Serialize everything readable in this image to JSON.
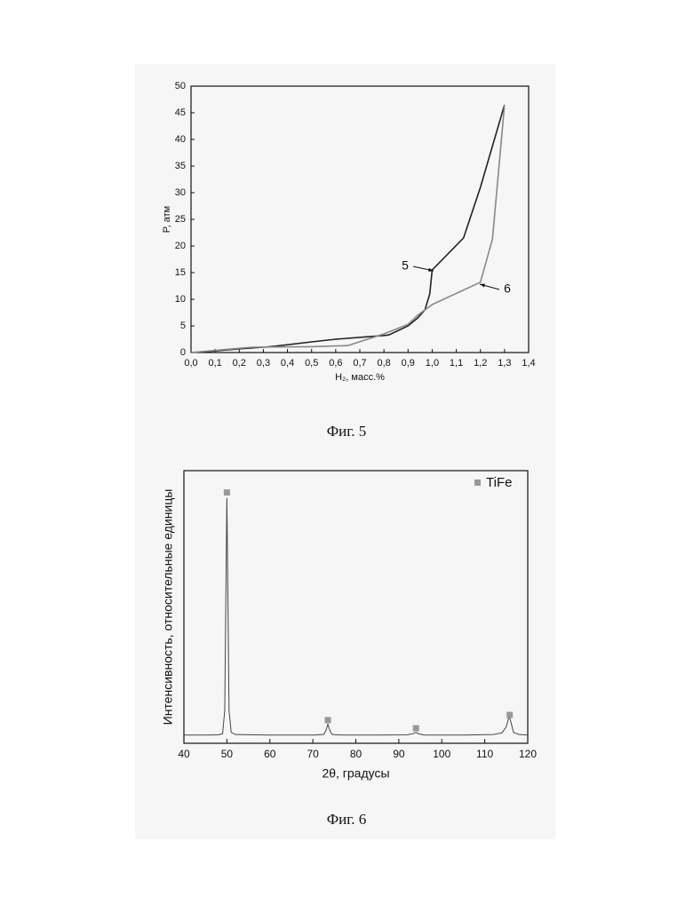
{
  "chart_data": [
    {
      "type": "line",
      "caption": "Фиг. 5",
      "xlabel": "H₂, масс.%",
      "ylabel": "P, атм",
      "xlim": [
        0,
        1.4
      ],
      "ylim": [
        0,
        50
      ],
      "xticks": [
        {
          "value": 0,
          "label": "0,0"
        },
        {
          "value": 0.1,
          "label": "0,1"
        },
        {
          "value": 0.2,
          "label": "0,2"
        },
        {
          "value": 0.3,
          "label": "0,3"
        },
        {
          "value": 0.4,
          "label": "0,4"
        },
        {
          "value": 0.5,
          "label": "0,5"
        },
        {
          "value": 0.6,
          "label": "0,6"
        },
        {
          "value": 0.7,
          "label": "0,7"
        },
        {
          "value": 0.8,
          "label": "0,8"
        },
        {
          "value": 0.9,
          "label": "0,9"
        },
        {
          "value": 1.0,
          "label": "1,0"
        },
        {
          "value": 1.1,
          "label": "1,1"
        },
        {
          "value": 1.2,
          "label": "1,2"
        },
        {
          "value": 1.3,
          "label": "1,3"
        },
        {
          "value": 1.4,
          "label": "1,4"
        }
      ],
      "yticks": [
        0,
        5,
        10,
        15,
        20,
        25,
        30,
        35,
        40,
        45,
        50
      ],
      "series": [
        {
          "name": "5",
          "color": "#222222",
          "x": [
            0.0,
            0.1,
            0.2,
            0.3,
            0.35,
            0.5,
            0.6,
            0.8,
            0.82,
            0.9,
            0.94,
            0.97,
            0.99,
            1.0,
            1.13,
            1.2,
            1.3
          ],
          "values": [
            0,
            0.3,
            0.7,
            1.0,
            1.2,
            2.0,
            2.5,
            3.2,
            3.3,
            5,
            6.5,
            8,
            11,
            15.5,
            21.5,
            31,
            46.5
          ]
        },
        {
          "name": "6",
          "color": "#888888",
          "x": [
            0.0,
            0.25,
            0.5,
            0.65,
            0.8,
            0.9,
            0.94,
            1.0,
            1.2,
            1.25,
            1.3
          ],
          "values": [
            0,
            1,
            1.1,
            1.3,
            3.5,
            5.3,
            7,
            9,
            13.2,
            21.3,
            46.5
          ]
        }
      ]
    },
    {
      "type": "line",
      "caption": "Фиг. 6",
      "xlabel": "2θ, градусы",
      "ylabel": "Интенсивность, относительные единицы",
      "xlim": [
        40,
        120
      ],
      "ylim": [
        0,
        100
      ],
      "xticks": [
        40,
        50,
        60,
        70,
        80,
        90,
        100,
        110,
        120
      ],
      "color": "#444444",
      "x": [
        40,
        45,
        48,
        49,
        49.5,
        49.8,
        50,
        50.2,
        50.5,
        51,
        52,
        60,
        70,
        72.5,
        73,
        73.5,
        74,
        74.5,
        77,
        85,
        92,
        93.5,
        94,
        94.5,
        96,
        105,
        112,
        114,
        115,
        115.5,
        115.8,
        116.2,
        116.7,
        118,
        120
      ],
      "values": [
        3,
        3,
        3.1,
        3.5,
        12,
        60,
        90,
        60,
        12,
        4,
        3.2,
        3,
        3,
        3.2,
        4.5,
        7,
        4.5,
        3.2,
        3,
        3,
        3.1,
        3.6,
        4,
        3.5,
        3,
        3,
        3.2,
        3.8,
        6,
        9,
        9.5,
        7,
        4,
        3.2,
        3
      ],
      "legend": "upper right",
      "series": [
        {
          "name": "TiFe",
          "type": "scatter",
          "color": "#999999",
          "x": [
            50,
            73.5,
            94,
            115.8
          ],
          "values": [
            92,
            8.5,
            5.5,
            10.4
          ]
        }
      ]
    }
  ]
}
